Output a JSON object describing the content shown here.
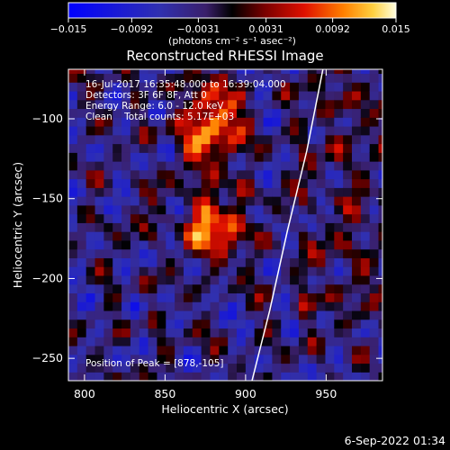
{
  "chart_data": {
    "type": "heatmap",
    "title": "Reconstructed RHESSI Image",
    "xlabel": "Heliocentric X (arcsec)",
    "ylabel": "Heliocentric Y (arcsec)",
    "xlim": [
      790,
      985
    ],
    "ylim": [
      -264,
      -69
    ],
    "xticks": [
      800,
      850,
      900,
      950
    ],
    "yticks": [
      -100,
      -150,
      -200,
      -250
    ],
    "x_tick_labels": [
      "800",
      "850",
      "900",
      "950"
    ],
    "y_tick_labels": [
      "−100",
      "−150",
      "−200",
      "−250"
    ],
    "colorbar": {
      "range": [
        -0.015,
        0.015
      ],
      "ticks": [
        -0.015,
        -0.0092,
        -0.0031,
        0.0031,
        0.0092,
        0.015
      ],
      "tick_labels": [
        "−0.015",
        "−0.0092",
        "−0.0031",
        "0.0031",
        "0.0092",
        "0.015"
      ],
      "unit_label": "(photons cm⁻² s⁻¹ asec⁻²)"
    },
    "annotations": {
      "time": "16-Jul-2017 16:35:48.000 to 16:39:04.000",
      "detectors": "Detectors: 3F 6F 8F, Att 0",
      "energy": "Energy Range: 6.0 - 12.0 keV",
      "clean": "Clean    Total counts: 5.17E+03",
      "peak": "Position of Peak = [878,-105]"
    },
    "peak": [
      878,
      -105
    ],
    "sources": [
      {
        "x": 878,
        "y": -105,
        "peak": 0.015,
        "sigma_x": 12,
        "sigma_y": 18
      },
      {
        "x": 880,
        "y": -168,
        "peak": 0.0145,
        "sigma_x": 13,
        "sigma_y": 12
      }
    ],
    "limb": [
      [
        904,
        -264
      ],
      [
        915,
        -220
      ],
      [
        926,
        -170
      ],
      [
        938,
        -120
      ],
      [
        948,
        -69
      ]
    ],
    "footer": "6-Sep-2022 01:34"
  }
}
